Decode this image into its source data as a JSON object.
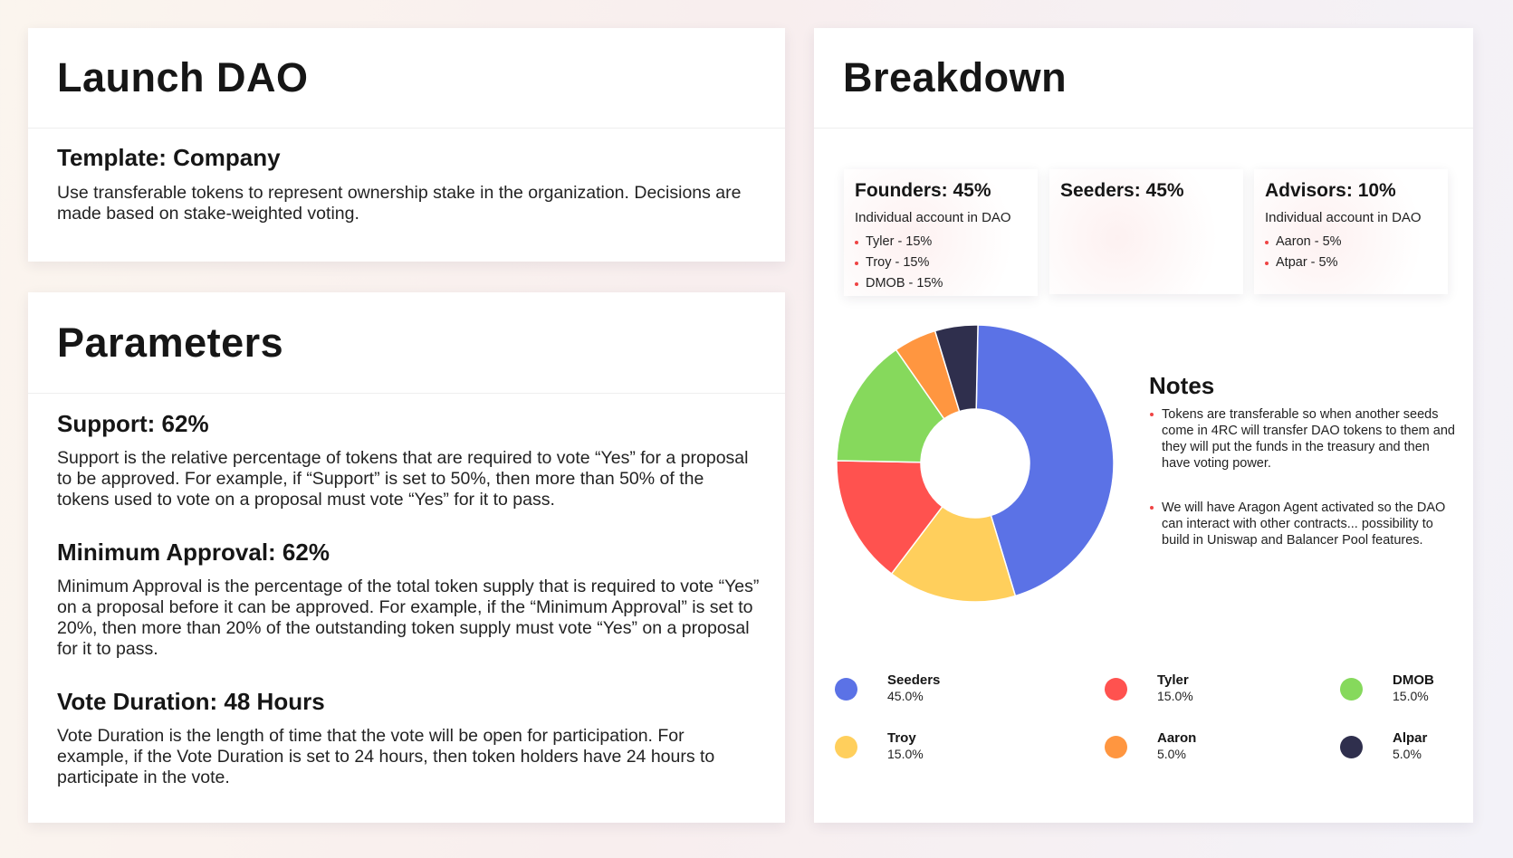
{
  "launch": {
    "title": "Launch DAO",
    "template_title": "Template: Company",
    "template_desc": "Use transferable tokens to represent ownership stake in the organization. Decisions are made based on stake-weighted voting."
  },
  "parameters": {
    "title": "Parameters",
    "support_title": "Support: 62%",
    "support_desc": "Support is the relative percentage of tokens that are required to vote “Yes” for a proposal to be approved. For example, if “Support” is set to 50%, then more than 50% of the tokens used to vote on a proposal must vote “Yes” for it to pass.",
    "approval_title": "Minimum Approval: 62%",
    "approval_desc": "Minimum Approval is the percentage of the total token supply that is required  to vote “Yes” on a proposal before it can be approved. For example, if the “Minimum Approval” is set to 20%, then more than 20% of the outstanding token supply must vote “Yes” on a proposal for it to pass.",
    "duration_title": "Vote Duration: 48 Hours",
    "duration_desc": "Vote Duration is the length of time that the vote will be open for participation. For example, if the Vote Duration is set to 24 hours, then token holders have 24 hours to participate in the vote."
  },
  "breakdown": {
    "title": "Breakdown",
    "founders": {
      "title": "Founders: 45%",
      "sub": "Individual account in DAO",
      "items": [
        "Tyler - 15%",
        "Troy - 15%",
        "DMOB - 15%"
      ]
    },
    "seeders": {
      "title": "Seeders: 45%"
    },
    "advisors": {
      "title": "Advisors: 10%",
      "sub": "Individual account in DAO",
      "items": [
        "Aaron - 5%",
        "Atpar - 5%"
      ]
    },
    "notes": {
      "title": "Notes",
      "items": [
        "Tokens are transferable so when another seeds come in 4RC will transfer DAO tokens to them and they will put the funds in the treasury and then have voting power.",
        "We will have Aragon Agent activated so the DAO can interact with other contracts... possibility to build in Uniswap and Balancer Pool features."
      ]
    }
  },
  "chart_data": {
    "type": "pie",
    "donut": true,
    "categories": [
      "Seeders",
      "Troy",
      "Tyler",
      "DMOB",
      "Aaron",
      "Alpar"
    ],
    "values": [
      45.0,
      15.0,
      15.0,
      15.0,
      5.0,
      5.0
    ],
    "labels": [
      "45.0%",
      "15.0%",
      "15.0%",
      "15.0%",
      "5.0%",
      "5.0%"
    ],
    "colors": [
      "#5b72e6",
      "#ffcf5c",
      "#ff524f",
      "#86d95c",
      "#ff9640",
      "#2f2f4d"
    ]
  }
}
